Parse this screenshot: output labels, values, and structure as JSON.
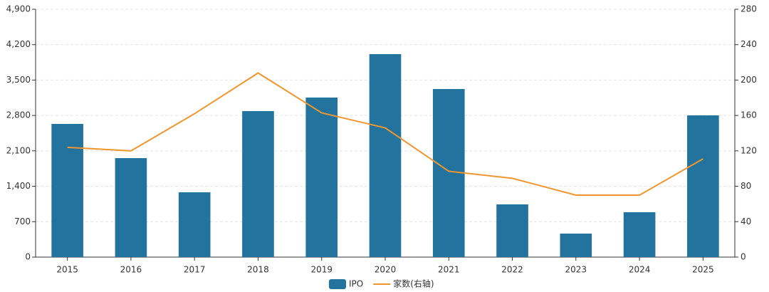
{
  "chart_data": {
    "type": "bar-line",
    "categories": [
      "2015",
      "2016",
      "2017",
      "2018",
      "2019",
      "2020",
      "2021",
      "2022",
      "2023",
      "2024",
      "2025"
    ],
    "series": [
      {
        "name": "IPO",
        "type": "bar",
        "color": "#23739f",
        "values": [
          2633,
          1957,
          1281,
          2886,
          3154,
          4013,
          3323,
          1042,
          465,
          887,
          2802
        ]
      },
      {
        "name": "家数(右轴)",
        "type": "line",
        "axis": "y2",
        "color": "#f0962e",
        "values": [
          124,
          120,
          162,
          208,
          163,
          146,
          97,
          89,
          70,
          70,
          111
        ]
      }
    ],
    "ylim": [
      0,
      4900
    ],
    "yticks": [
      0,
      {
        "value": 700,
        "label": "700"
      },
      {
        "value": 1400,
        "label": "1,400"
      },
      {
        "value": 2100,
        "label": "2,100"
      },
      {
        "value": 2800,
        "label": "2,800"
      },
      {
        "value": 3500,
        "label": "3,500"
      },
      {
        "value": 4200,
        "label": "4,200"
      },
      {
        "value": 4900,
        "label": "4,900"
      }
    ],
    "y2lim": [
      0,
      280
    ],
    "y2ticks": [
      0,
      40,
      80,
      120,
      160,
      200,
      240,
      280
    ],
    "grid": true,
    "legend": "bottom"
  }
}
